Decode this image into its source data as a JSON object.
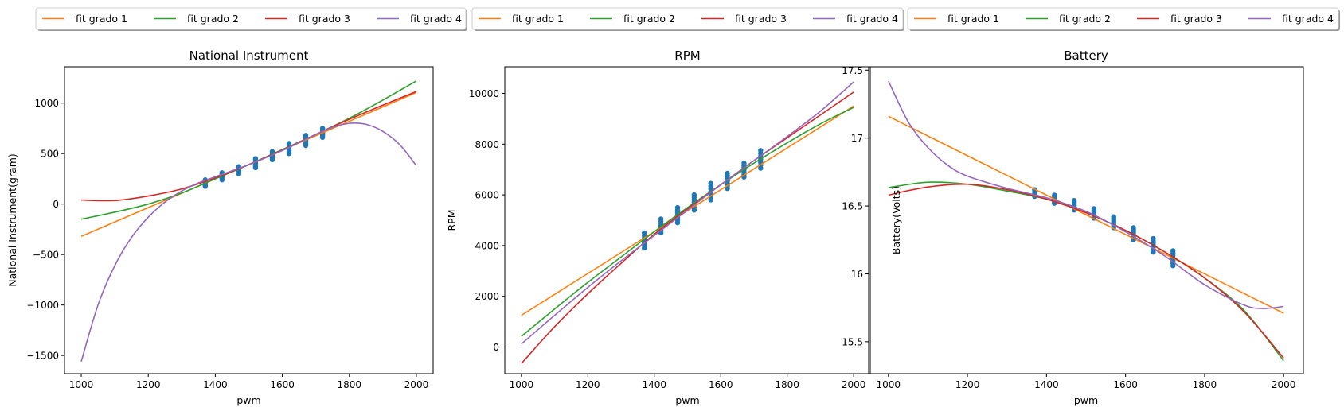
{
  "colors": {
    "fit_grado_1": "#ff7f0e",
    "fit_grado_2": "#2ca02c",
    "fit_grado_3": "#d62728",
    "fit_grado_4": "#9467bd",
    "points": "#1f77b4"
  },
  "legend_labels": [
    "fit grado 1",
    "fit grado 2",
    "fit grado 3",
    "fit grado 4"
  ],
  "chart_data": [
    {
      "type": "line",
      "title": "National Instrument",
      "xlabel": "pwm",
      "ylabel": "National Instrument(gram)",
      "xlim": [
        950,
        2050
      ],
      "ylim": [
        1680,
        1360
      ],
      "xticks": [
        1000,
        1200,
        1400,
        1600,
        1800,
        2000
      ],
      "yticks": [
        -1500,
        -1000,
        -500,
        0,
        500,
        1000
      ],
      "grid": false,
      "legend": "top",
      "scatter": {
        "x": [
          1370,
          1420,
          1470,
          1520,
          1570,
          1620,
          1670,
          1720
        ],
        "y_min": [
          175,
          240,
          300,
          360,
          440,
          500,
          580,
          660
        ],
        "y_max": [
          240,
          310,
          370,
          450,
          520,
          600,
          680,
          750
        ]
      },
      "series": [
        {
          "name": "fit grado 1",
          "x": [
            1000,
            1200,
            1400,
            1600,
            1800,
            2000
          ],
          "y": [
            -320,
            -35,
            250,
            535,
            820,
            1105
          ]
        },
        {
          "name": "fit grado 2",
          "x": [
            1000,
            1100,
            1200,
            1300,
            1400,
            1500,
            1600,
            1700,
            1800,
            1900,
            2000
          ],
          "y": [
            -150,
            -80,
            0,
            110,
            250,
            390,
            540,
            690,
            850,
            1030,
            1220
          ]
        },
        {
          "name": "fit grado 3",
          "x": [
            1000,
            1100,
            1200,
            1300,
            1400,
            1500,
            1600,
            1700,
            1800,
            1900,
            2000
          ],
          "y": [
            40,
            35,
            80,
            150,
            260,
            390,
            535,
            690,
            840,
            980,
            1115
          ]
        },
        {
          "name": "fit grado 4",
          "x": [
            1000,
            1050,
            1100,
            1150,
            1200,
            1250,
            1300,
            1350,
            1400,
            1500,
            1600,
            1700,
            1750,
            1800,
            1850,
            1900,
            1950,
            2000
          ],
          "y": [
            -1560,
            -1000,
            -610,
            -330,
            -130,
            20,
            130,
            210,
            270,
            390,
            530,
            690,
            760,
            800,
            790,
            720,
            590,
            380
          ]
        }
      ]
    },
    {
      "type": "line",
      "title": "RPM",
      "xlabel": "pwm",
      "ylabel": "RPM",
      "xlim": [
        950,
        2050
      ],
      "ylim": [
        -1050,
        11050
      ],
      "xticks": [
        1000,
        1200,
        1400,
        1600,
        1800,
        2000
      ],
      "yticks": [
        0,
        2000,
        4000,
        6000,
        8000,
        10000
      ],
      "grid": false,
      "legend": "top",
      "scatter": {
        "x": [
          1370,
          1420,
          1470,
          1520,
          1570,
          1620,
          1670,
          1720
        ],
        "y_min": [
          3900,
          4500,
          4900,
          5400,
          5800,
          6250,
          6700,
          7050
        ],
        "y_max": [
          4500,
          5050,
          5500,
          6000,
          6450,
          6850,
          7250,
          7750
        ]
      },
      "series": [
        {
          "name": "fit grado 1",
          "x": [
            1000,
            1200,
            1400,
            1600,
            1800,
            2000
          ],
          "y": [
            1250,
            2900,
            4550,
            6200,
            7850,
            9500
          ]
        },
        {
          "name": "fit grado 2",
          "x": [
            1000,
            1100,
            1200,
            1300,
            1400,
            1500,
            1600,
            1700,
            1800,
            1900,
            2000
          ],
          "y": [
            420,
            1500,
            2550,
            3550,
            4550,
            5500,
            6400,
            7250,
            8050,
            8800,
            9450
          ]
        },
        {
          "name": "fit grado 3",
          "x": [
            1000,
            1100,
            1200,
            1300,
            1400,
            1500,
            1600,
            1700,
            1800,
            1900,
            2000
          ],
          "y": [
            -650,
            800,
            2100,
            3300,
            4450,
            5450,
            6400,
            7350,
            8250,
            9150,
            10050
          ]
        },
        {
          "name": "fit grado 4",
          "x": [
            1000,
            1100,
            1200,
            1300,
            1400,
            1500,
            1600,
            1700,
            1800,
            1900,
            2000
          ],
          "y": [
            120,
            1250,
            2350,
            3400,
            4400,
            5400,
            6400,
            7350,
            8300,
            9300,
            10450
          ]
        }
      ]
    },
    {
      "type": "line",
      "title": "Battery",
      "xlabel": "pwm",
      "ylabel": "Battery(Volts)",
      "xlim": [
        950,
        2050
      ],
      "ylim": [
        15.265,
        17.525
      ],
      "xticks": [
        1000,
        1200,
        1400,
        1600,
        1800,
        2000
      ],
      "yticks": [
        15.5,
        16.0,
        16.5,
        17.0,
        17.5
      ],
      "grid": false,
      "legend": "top",
      "scatter": {
        "x": [
          1370,
          1420,
          1470,
          1520,
          1570,
          1620,
          1670,
          1720
        ],
        "y_min": [
          16.57,
          16.52,
          16.47,
          16.41,
          16.34,
          16.25,
          16.16,
          16.06
        ],
        "y_max": [
          16.62,
          16.58,
          16.54,
          16.48,
          16.42,
          16.34,
          16.26,
          16.17
        ]
      },
      "series": [
        {
          "name": "fit grado 1",
          "x": [
            1000,
            1200,
            1400,
            1600,
            1800,
            2000
          ],
          "y": [
            17.16,
            16.87,
            16.58,
            16.29,
            16.0,
            15.71
          ]
        },
        {
          "name": "fit grado 2",
          "x": [
            1000,
            1100,
            1200,
            1300,
            1400,
            1500,
            1600,
            1700,
            1800,
            1900,
            2000
          ],
          "y": [
            16.635,
            16.675,
            16.66,
            16.61,
            16.55,
            16.45,
            16.32,
            16.16,
            15.97,
            15.73,
            15.36
          ]
        },
        {
          "name": "fit grado 3",
          "x": [
            1000,
            1100,
            1200,
            1300,
            1400,
            1500,
            1600,
            1700,
            1800,
            1900,
            2000
          ],
          "y": [
            16.58,
            16.64,
            16.66,
            16.62,
            16.55,
            16.45,
            16.32,
            16.16,
            15.97,
            15.72,
            15.38
          ]
        },
        {
          "name": "fit grado 4",
          "x": [
            1000,
            1050,
            1100,
            1150,
            1200,
            1300,
            1400,
            1500,
            1600,
            1700,
            1800,
            1900,
            1950,
            2000
          ],
          "y": [
            17.42,
            17.12,
            16.93,
            16.8,
            16.72,
            16.63,
            16.56,
            16.46,
            16.31,
            16.13,
            15.92,
            15.77,
            15.745,
            15.76
          ]
        }
      ]
    }
  ]
}
